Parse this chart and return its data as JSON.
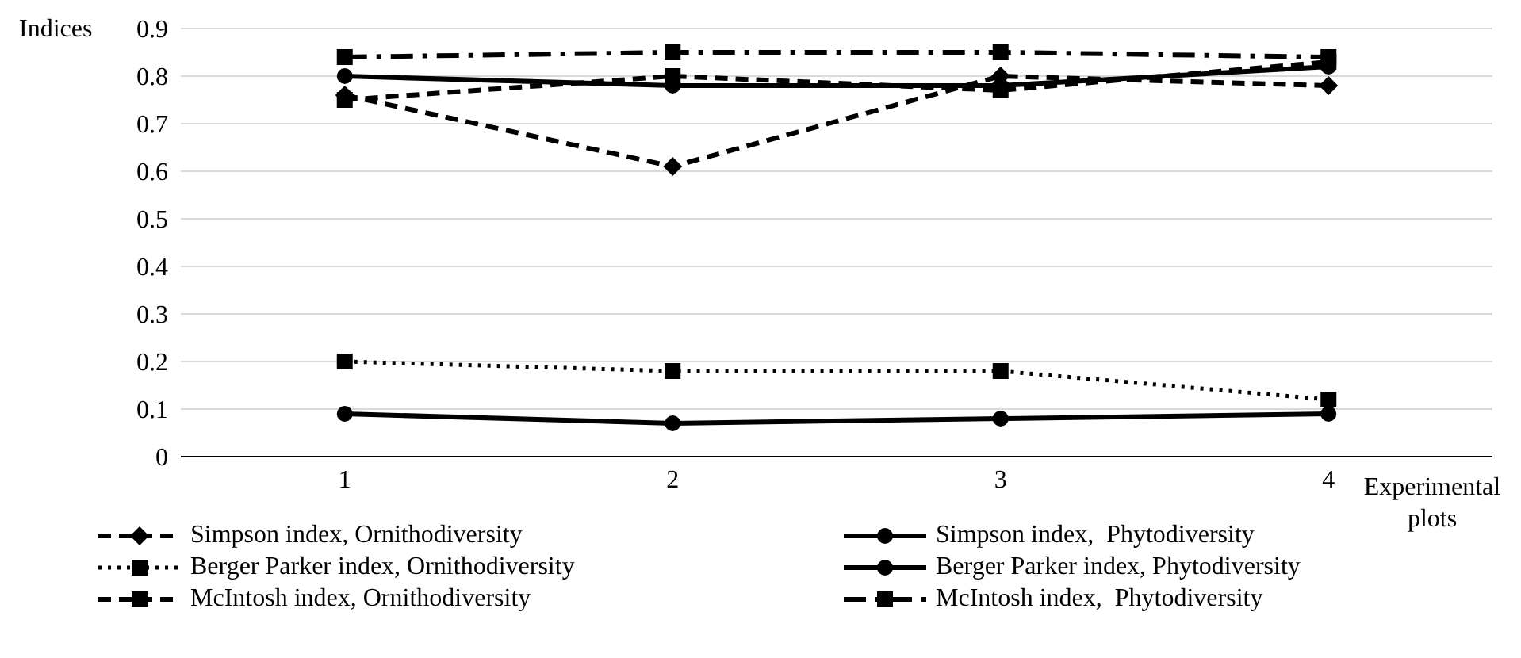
{
  "chart_data": {
    "type": "line",
    "ylabel": "Indices",
    "xlabel": "Experimental plots",
    "categories": [
      "1",
      "2",
      "3",
      "4"
    ],
    "ylim": [
      0,
      0.9
    ],
    "yticks": [
      0,
      0.1,
      0.2,
      0.3,
      0.4,
      0.5,
      0.6,
      0.7,
      0.8,
      0.9
    ],
    "grid": "y",
    "legend": "bottom",
    "series": [
      {
        "name": "Simpson index, Ornithodiversity",
        "color": "#000000",
        "values": [
          0.76,
          0.61,
          0.8,
          0.78
        ],
        "marker": "diamond",
        "line_style": "dashed"
      },
      {
        "name": "Simpson index,  Phytodiversity",
        "color": "#000000",
        "values": [
          0.8,
          0.78,
          0.78,
          0.82
        ],
        "marker": "circle",
        "line_style": "solid"
      },
      {
        "name": "Berger Parker index, Ornithodiversity",
        "color": "#000000",
        "values": [
          0.2,
          0.18,
          0.18,
          0.12
        ],
        "marker": "square",
        "line_style": "dotted"
      },
      {
        "name": "Berger Parker index, Phytodiversity",
        "color": "#000000",
        "values": [
          0.09,
          0.07,
          0.08,
          0.09
        ],
        "marker": "circle",
        "line_style": "solid"
      },
      {
        "name": "McIntosh index, Ornithodiversity",
        "color": "#000000",
        "values": [
          0.75,
          0.8,
          0.77,
          0.83
        ],
        "marker": "square",
        "line_style": "dashed"
      },
      {
        "name": "McIntosh index,  Phytodiversity",
        "color": "#000000",
        "values": [
          0.84,
          0.85,
          0.85,
          0.84
        ],
        "marker": "square",
        "line_style": "dashdot"
      }
    ]
  }
}
